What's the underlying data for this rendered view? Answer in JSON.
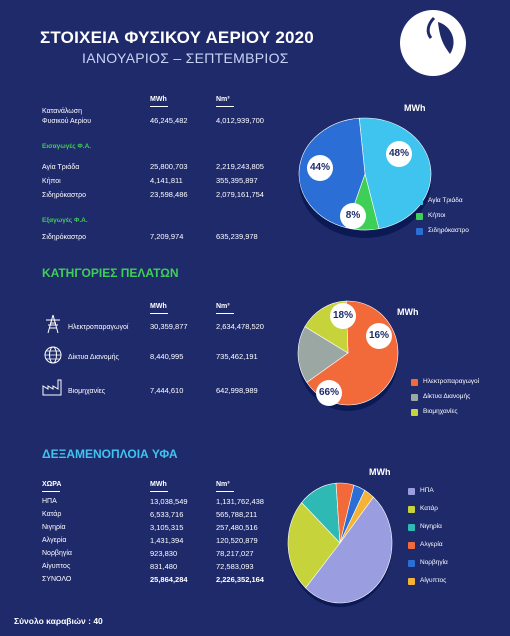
{
  "header": {
    "title": "ΣΤΟΙΧΕΙΑ ΦΥΣΙΚΟΥ ΑΕΡΙΟΥ 2020",
    "subtitle": "ΙΑΝΟΥΑΡΙΟΣ – ΣΕΠΤΕΜΒΡΙΟΣ"
  },
  "consumption": {
    "col_mwh": "MWh",
    "col_nm3": "Nm³",
    "label_line1": "Κατανάλωση",
    "label_line2": "Φυσικού Αερίου",
    "mwh": "46,245,482",
    "nm3": "4,012,939,700"
  },
  "imports": {
    "heading": "Εισαγωγές Φ.Α.",
    "rows": [
      {
        "label": "Αγία Τριάδα",
        "mwh": "25,800,703",
        "nm3": "2,219,243,805"
      },
      {
        "label": "Κήποι",
        "mwh": "4,141,811",
        "nm3": "355,395,897"
      },
      {
        "label": "Σιδηρόκαστρο",
        "mwh": "23,598,486",
        "nm3": "2,079,161,754"
      }
    ]
  },
  "exports": {
    "heading": "Εξαγωγές Φ.Α.",
    "row": {
      "label": "Σιδηρόκαστρο",
      "mwh": "7,209,974",
      "nm3": "635,239,978"
    }
  },
  "customers": {
    "heading": "ΚΑΤΗΓΟΡΙΕΣ ΠΕΛΑΤΩΝ",
    "col_mwh": "MWh",
    "col_nm3": "Nm³",
    "rows": [
      {
        "label": "Ηλεκτροπαραγωγοί",
        "mwh": "30,359,877",
        "nm3": "2,634,478,520",
        "icon": "power-tower-icon"
      },
      {
        "label": "Δίκτυα Διανομής",
        "mwh": "8,440,995",
        "nm3": "735,462,191",
        "icon": "globe-network-icon"
      },
      {
        "label": "Βιομηχανίες",
        "mwh": "7,444,610",
        "nm3": "642,998,989",
        "icon": "factory-icon"
      }
    ]
  },
  "lng": {
    "heading": "ΔΕΞΑΜΕΝΟΠΛΟΙΑ ΥΦΑ",
    "col_country": "ΧΩΡΑ",
    "col_mwh": "MWh",
    "col_nm3": "Nm³",
    "rows": [
      {
        "label": "ΗΠΑ",
        "mwh": "13,038,549",
        "nm3": "1,131,762,438"
      },
      {
        "label": "Κατάρ",
        "mwh": "6,533,716",
        "nm3": "565,788,211"
      },
      {
        "label": "Νιγηρία",
        "mwh": "3,105,315",
        "nm3": "257,480,516"
      },
      {
        "label": "Αλγερία",
        "mwh": "1,431,394",
        "nm3": "120,520,879"
      },
      {
        "label": "Νορβηγία",
        "mwh": "923,830",
        "nm3": "78,217,027"
      },
      {
        "label": "Αίγυπτος",
        "mwh": "831,480",
        "nm3": "72,583,093"
      }
    ],
    "total": {
      "label": "ΣΥΝΟΛΟ",
      "mwh": "25,864,284",
      "nm3": "2,226,352,164"
    }
  },
  "footer": {
    "ships": "Σύνολο καραβιών : 40"
  },
  "colors": {
    "background": "#1f2a6b",
    "green": "#3ecf56",
    "cyan": "#3fc4ef",
    "orange": "#f26a3a",
    "grey": "#9aa7a3",
    "yellowgreen": "#c6d33a",
    "lavender": "#9a9ee0",
    "teal": "#2fb9b4",
    "blue": "#2b6fd6",
    "gold": "#f5b335"
  },
  "chart_data": [
    {
      "type": "pie",
      "title": "MWh",
      "categories": [
        "Αγία Τριάδα",
        "Κήποι",
        "Σιδηρόκαστρο"
      ],
      "values": [
        48,
        8,
        44
      ],
      "labels": [
        "48%",
        "8%",
        "44%"
      ],
      "colors": [
        "#3fc4ef",
        "#3ecf56",
        "#2b6fd6"
      ],
      "legend": "bottom-right"
    },
    {
      "type": "pie",
      "title": "MWh",
      "categories": [
        "Ηλεκτροπαραγωγοί",
        "Δίκτυα Διανομής",
        "Βιομηχανίες"
      ],
      "values": [
        66,
        18,
        16
      ],
      "labels": [
        "66%",
        "18%",
        "16%"
      ],
      "colors": [
        "#f26a3a",
        "#9aa7a3",
        "#c6d33a"
      ],
      "legend": "bottom-right"
    },
    {
      "type": "pie",
      "title": "MWh",
      "categories": [
        "ΗΠΑ",
        "Κατάρ",
        "Νιγηρία",
        "Αλγερία",
        "Νορβηγία",
        "Αίγυπτος"
      ],
      "values": [
        13038549,
        6533716,
        3105315,
        1431394,
        923830,
        831480
      ],
      "colors": [
        "#9a9ee0",
        "#c6d33a",
        "#2fb9b4",
        "#f26a3a",
        "#2b6fd6",
        "#f5b335"
      ],
      "legend": "right"
    }
  ]
}
